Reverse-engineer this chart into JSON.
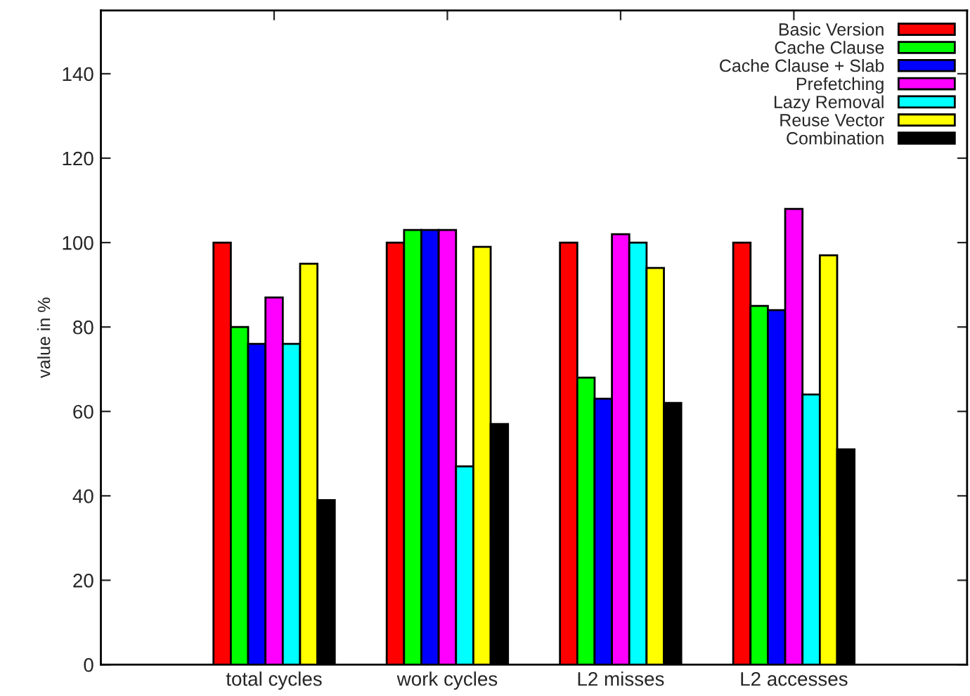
{
  "chart_data": {
    "type": "bar",
    "ylabel": "value in %",
    "categories": [
      "total cycles",
      "work cycles",
      "L2 misses",
      "L2 accesses"
    ],
    "series": [
      {
        "name": "Basic Version",
        "color": "#ff0000",
        "values": [
          100,
          100,
          100,
          100
        ]
      },
      {
        "name": "Cache Clause",
        "color": "#00ff00",
        "values": [
          80,
          103,
          68,
          85
        ]
      },
      {
        "name": "Cache Clause + Slab",
        "color": "#0000ff",
        "values": [
          76,
          103,
          63,
          84
        ]
      },
      {
        "name": "Prefetching",
        "color": "#ff00ff",
        "values": [
          87,
          103,
          102,
          108
        ]
      },
      {
        "name": "Lazy Removal",
        "color": "#00ffff",
        "values": [
          76,
          47,
          100,
          64
        ]
      },
      {
        "name": "Reuse Vector",
        "color": "#ffff00",
        "values": [
          95,
          99,
          94,
          97
        ]
      },
      {
        "name": "Combination",
        "color": "#000000",
        "values": [
          39,
          57,
          62,
          51
        ]
      }
    ],
    "ylim": [
      0,
      155
    ],
    "yticks": [
      0,
      20,
      40,
      60,
      80,
      100,
      120,
      140
    ],
    "grid": false,
    "legend": "top right"
  }
}
